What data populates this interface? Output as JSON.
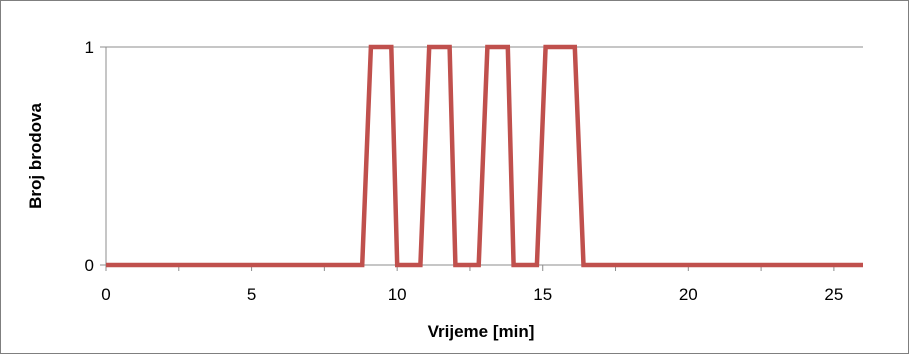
{
  "chart_data": {
    "type": "line",
    "title": "",
    "xlabel": "Vrijeme [min]",
    "ylabel": "Broj brodova",
    "xlim": [
      0,
      26
    ],
    "ylim": [
      0,
      1
    ],
    "x_ticks": [
      0,
      5,
      10,
      15,
      20,
      25
    ],
    "x_tick_labels": [
      "0",
      "5",
      "10",
      "15",
      "20",
      "25"
    ],
    "y_ticks": [
      0,
      1
    ],
    "y_tick_labels": [
      "0",
      "1"
    ],
    "grid": "horizontal",
    "legend": "none",
    "line_color": "#c0504d",
    "series": [
      {
        "x": [
          0,
          8.8,
          9.1,
          9.8,
          10.0,
          10.8,
          11.1,
          11.8,
          12.0,
          12.8,
          13.1,
          13.8,
          14.0,
          14.8,
          15.1,
          16.1,
          16.4,
          26
        ],
        "y": [
          0,
          0,
          1,
          1,
          0,
          0,
          1,
          1,
          0,
          0,
          1,
          1,
          0,
          0,
          1,
          1,
          0,
          0
        ]
      }
    ]
  }
}
